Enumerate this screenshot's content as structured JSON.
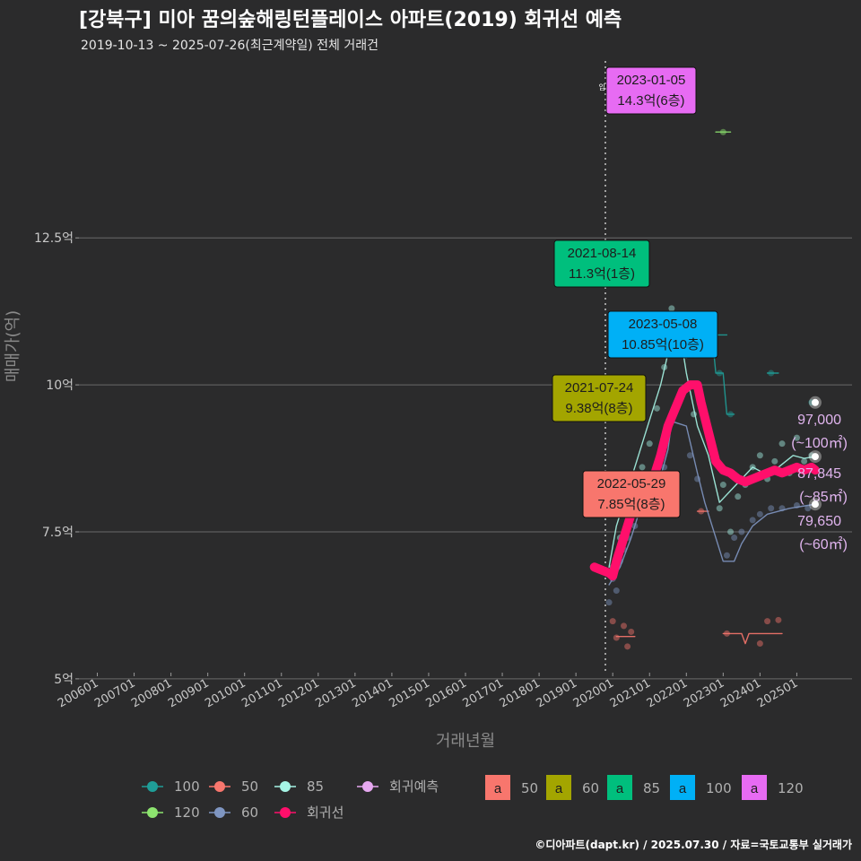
{
  "title": "[강북구] 미아 꿈의숲해링턴플레이스 아파트(2019) 회귀선 예측",
  "subtitle": "2019-10-13 ~ 2025-07-26(최근계약일) 전체 거래건",
  "caption": "©디아파트(dapt.kr) / 2025.07.30 / 자료=국토교통부 실거래가",
  "colors": {
    "s50": "#f8766d",
    "s60": "#7f96c2",
    "s85": "#a6f5e6",
    "s100": "#1f9e98",
    "s120": "#8de46f",
    "regression": "#ff0f6b",
    "forecast": "#e6a8f0",
    "box50": "#f8766d",
    "box60": "#a3a500",
    "box85": "#00bf7d",
    "box100": "#00b0f6",
    "box120": "#e76bf3"
  },
  "chart_data": {
    "type": "scatter",
    "title": "[강북구] 미아 꿈의숲해링턴플레이스 아파트(2019) 회귀선 예측",
    "xlabel": "거래년월",
    "ylabel": "매매가(억)",
    "ylim": [
      4.8,
      15.6
    ],
    "xlim": [
      2005.5,
      2026.5
    ],
    "y_ticks": [
      {
        "value": 5,
        "label": "5억"
      },
      {
        "value": 7.5,
        "label": "7.5억"
      },
      {
        "value": 10,
        "label": "10억"
      },
      {
        "value": 12.5,
        "label": "12.5억"
      }
    ],
    "x_ticks": [
      "200601",
      "200701",
      "200801",
      "200901",
      "201001",
      "201101",
      "201201",
      "201301",
      "201401",
      "201501",
      "201601",
      "201701",
      "201801",
      "201901",
      "202001",
      "202101",
      "202201",
      "202301",
      "202401",
      "202501"
    ],
    "move_in": {
      "x": 2019.8,
      "label": "입주"
    },
    "grid": true,
    "legend_position": "bottom",
    "series": [
      {
        "name": "50",
        "color_key": "s50",
        "line": [
          [
            2020.1,
            5.72
          ],
          [
            2020.6,
            5.72
          ]
        ],
        "line2": [
          [
            2022.3,
            7.85
          ],
          [
            2022.6,
            7.85
          ]
        ],
        "line3": [
          [
            2023.0,
            5.77
          ],
          [
            2023.5,
            5.77
          ],
          [
            2023.6,
            5.6
          ],
          [
            2023.7,
            5.77
          ],
          [
            2024.6,
            5.77
          ]
        ],
        "points": [
          [
            2020.0,
            5.98
          ],
          [
            2020.1,
            5.7
          ],
          [
            2020.3,
            5.9
          ],
          [
            2020.4,
            5.55
          ],
          [
            2020.5,
            5.8
          ],
          [
            2022.4,
            7.85
          ],
          [
            2023.1,
            5.77
          ],
          [
            2024.0,
            5.6
          ],
          [
            2024.2,
            5.98
          ],
          [
            2024.5,
            6.0
          ]
        ]
      },
      {
        "name": "60",
        "color_key": "s60",
        "line": [
          [
            2019.9,
            6.6
          ],
          [
            2020.2,
            6.9
          ],
          [
            2020.5,
            7.4
          ],
          [
            2020.8,
            8.0
          ],
          [
            2021.2,
            8.2
          ],
          [
            2021.5,
            8.9
          ],
          [
            2021.6,
            9.38
          ],
          [
            2022.0,
            9.3
          ],
          [
            2022.3,
            8.5
          ],
          [
            2022.5,
            8.0
          ],
          [
            2023.0,
            7.0
          ],
          [
            2023.3,
            7.0
          ],
          [
            2023.5,
            7.3
          ],
          [
            2023.8,
            7.6
          ],
          [
            2024.2,
            7.8
          ],
          [
            2024.8,
            7.9
          ],
          [
            2025.3,
            7.95
          ],
          [
            2025.5,
            7.97
          ]
        ],
        "points": [
          [
            2019.9,
            6.3
          ],
          [
            2020.0,
            6.7
          ],
          [
            2020.1,
            6.5
          ],
          [
            2020.2,
            7.0
          ],
          [
            2020.3,
            7.2
          ],
          [
            2020.4,
            7.4
          ],
          [
            2020.6,
            7.6
          ],
          [
            2020.8,
            7.9
          ],
          [
            2021.0,
            8.0
          ],
          [
            2021.2,
            8.3
          ],
          [
            2021.4,
            8.6
          ],
          [
            2021.6,
            9.38
          ],
          [
            2022.1,
            8.8
          ],
          [
            2022.3,
            8.4
          ],
          [
            2023.1,
            7.1
          ],
          [
            2023.3,
            7.4
          ],
          [
            2023.5,
            7.5
          ],
          [
            2023.8,
            7.7
          ],
          [
            2024.0,
            7.8
          ],
          [
            2024.3,
            7.9
          ],
          [
            2024.6,
            7.9
          ],
          [
            2025.0,
            7.95
          ],
          [
            2025.3,
            7.9
          ]
        ]
      },
      {
        "name": "85",
        "color_key": "s85",
        "line": [
          [
            2019.9,
            6.9
          ],
          [
            2020.1,
            7.6
          ],
          [
            2020.4,
            8.2
          ],
          [
            2020.7,
            8.8
          ],
          [
            2021.0,
            9.4
          ],
          [
            2021.3,
            10.0
          ],
          [
            2021.6,
            10.8
          ],
          [
            2021.8,
            11.0
          ],
          [
            2022.0,
            10.2
          ],
          [
            2022.3,
            9.3
          ],
          [
            2022.6,
            8.8
          ],
          [
            2022.9,
            8.0
          ],
          [
            2023.2,
            8.2
          ],
          [
            2023.5,
            8.4
          ],
          [
            2023.8,
            8.6
          ],
          [
            2024.1,
            8.5
          ],
          [
            2024.5,
            8.6
          ],
          [
            2024.9,
            8.8
          ],
          [
            2025.2,
            8.75
          ],
          [
            2025.5,
            8.78
          ]
        ],
        "points": [
          [
            2020.0,
            6.9
          ],
          [
            2020.2,
            7.4
          ],
          [
            2020.4,
            7.9
          ],
          [
            2020.6,
            8.3
          ],
          [
            2020.8,
            8.6
          ],
          [
            2021.0,
            9.0
          ],
          [
            2021.2,
            9.6
          ],
          [
            2021.4,
            10.3
          ],
          [
            2021.6,
            11.3
          ],
          [
            2021.8,
            10.8
          ],
          [
            2022.0,
            10.5
          ],
          [
            2022.2,
            9.5
          ],
          [
            2022.9,
            7.9
          ],
          [
            2023.0,
            8.3
          ],
          [
            2023.2,
            7.5
          ],
          [
            2023.4,
            8.1
          ],
          [
            2023.6,
            8.3
          ],
          [
            2023.8,
            8.6
          ],
          [
            2024.0,
            8.8
          ],
          [
            2024.2,
            8.4
          ],
          [
            2024.4,
            8.7
          ],
          [
            2024.6,
            9.0
          ],
          [
            2024.8,
            8.5
          ],
          [
            2025.0,
            9.1
          ],
          [
            2025.2,
            8.7
          ],
          [
            2025.4,
            8.8
          ]
        ]
      },
      {
        "name": "100",
        "color_key": "s100",
        "line": [
          [
            2022.5,
            10.85
          ],
          [
            2022.7,
            10.85
          ],
          [
            2022.8,
            10.2
          ],
          [
            2023.0,
            10.2
          ],
          [
            2023.1,
            9.5
          ],
          [
            2023.3,
            9.5
          ]
        ],
        "line2": [
          [
            2022.8,
            10.85
          ],
          [
            2023.1,
            10.85
          ]
        ],
        "line3": [
          [
            2024.2,
            10.2
          ],
          [
            2024.5,
            10.2
          ]
        ],
        "points": [
          [
            2022.6,
            10.85
          ],
          [
            2022.9,
            10.2
          ],
          [
            2023.2,
            9.5
          ],
          [
            2024.3,
            10.2
          ],
          [
            2025.4,
            9.7
          ]
        ]
      },
      {
        "name": "120",
        "color_key": "s120",
        "line": [
          [
            2022.8,
            14.3
          ],
          [
            2023.2,
            14.3
          ]
        ],
        "points": [
          [
            2023.0,
            14.3
          ]
        ]
      },
      {
        "name": "회귀선",
        "color_key": "regression",
        "line": [
          [
            2019.5,
            6.9
          ],
          [
            2019.7,
            6.85
          ],
          [
            2019.9,
            6.8
          ],
          [
            2020.0,
            6.75
          ],
          [
            2020.1,
            7.0
          ],
          [
            2020.3,
            7.4
          ],
          [
            2020.5,
            7.8
          ],
          [
            2020.7,
            8.0
          ],
          [
            2020.9,
            8.2
          ],
          [
            2021.1,
            8.4
          ],
          [
            2021.3,
            8.8
          ],
          [
            2021.5,
            9.3
          ],
          [
            2021.7,
            9.6
          ],
          [
            2021.9,
            9.9
          ],
          [
            2022.1,
            10.0
          ],
          [
            2022.3,
            10.0
          ],
          [
            2022.4,
            9.7
          ],
          [
            2022.6,
            9.2
          ],
          [
            2022.8,
            8.7
          ],
          [
            2023.0,
            8.55
          ],
          [
            2023.2,
            8.5
          ],
          [
            2023.4,
            8.4
          ],
          [
            2023.6,
            8.35
          ],
          [
            2023.8,
            8.4
          ],
          [
            2024.0,
            8.45
          ],
          [
            2024.2,
            8.5
          ],
          [
            2024.4,
            8.55
          ],
          [
            2024.6,
            8.5
          ],
          [
            2024.8,
            8.55
          ],
          [
            2025.0,
            8.6
          ],
          [
            2025.2,
            8.55
          ],
          [
            2025.4,
            8.6
          ],
          [
            2025.5,
            8.55
          ]
        ]
      }
    ],
    "forecast": [
      {
        "area": "~100㎡",
        "value": "97,000",
        "label": "(~100㎡)",
        "y": 9.7
      },
      {
        "area": "~85㎡",
        "value": "87,845",
        "label": "(~85㎡)",
        "y": 8.78
      },
      {
        "area": "~60㎡",
        "value": "79,650",
        "label": "(~60㎡)",
        "y": 7.97
      }
    ],
    "annotations": [
      {
        "date": "2023-01-05",
        "price": "14.3억(6층)",
        "box": "box120",
        "text_color": "#1d1d1d",
        "x": 2023.0,
        "y": 14.3
      },
      {
        "date": "2021-08-14",
        "price": "11.3억(1층)",
        "box": "box85",
        "text_color": "#1d1d1d",
        "x": 2021.6,
        "y": 11.3
      },
      {
        "date": "2023-05-08",
        "price": "10.85억(10층)",
        "box": "box100",
        "text_color": "#1d1d1d",
        "x": 2023.35,
        "y": 10.85
      },
      {
        "date": "2021-07-24",
        "price": "9.38억(8층)",
        "box": "box60",
        "text_color": "#1d1d1d",
        "x": 2021.55,
        "y": 9.38
      },
      {
        "date": "2022-05-29",
        "price": "7.85억(8층)",
        "box": "box50",
        "text_color": "#1d1d1d",
        "x": 2022.4,
        "y": 7.85
      }
    ]
  },
  "legend": {
    "points": [
      {
        "label": "100",
        "color_key": "s100"
      },
      {
        "label": "50",
        "color_key": "s50"
      },
      {
        "label": "85",
        "color_key": "s85"
      },
      {
        "label": "회귀예측",
        "color_key": "forecast"
      },
      {
        "label": "120",
        "color_key": "s120"
      },
      {
        "label": "60",
        "color_key": "s60"
      },
      {
        "label": "회귀선",
        "color_key": "regression"
      }
    ],
    "boxes": [
      {
        "letter": "a",
        "label": "50",
        "color_key": "box50"
      },
      {
        "letter": "a",
        "label": "60",
        "color_key": "box60"
      },
      {
        "letter": "a",
        "label": "85",
        "color_key": "box85"
      },
      {
        "letter": "a",
        "label": "100",
        "color_key": "box100"
      },
      {
        "letter": "a",
        "label": "120",
        "color_key": "box120"
      }
    ]
  }
}
